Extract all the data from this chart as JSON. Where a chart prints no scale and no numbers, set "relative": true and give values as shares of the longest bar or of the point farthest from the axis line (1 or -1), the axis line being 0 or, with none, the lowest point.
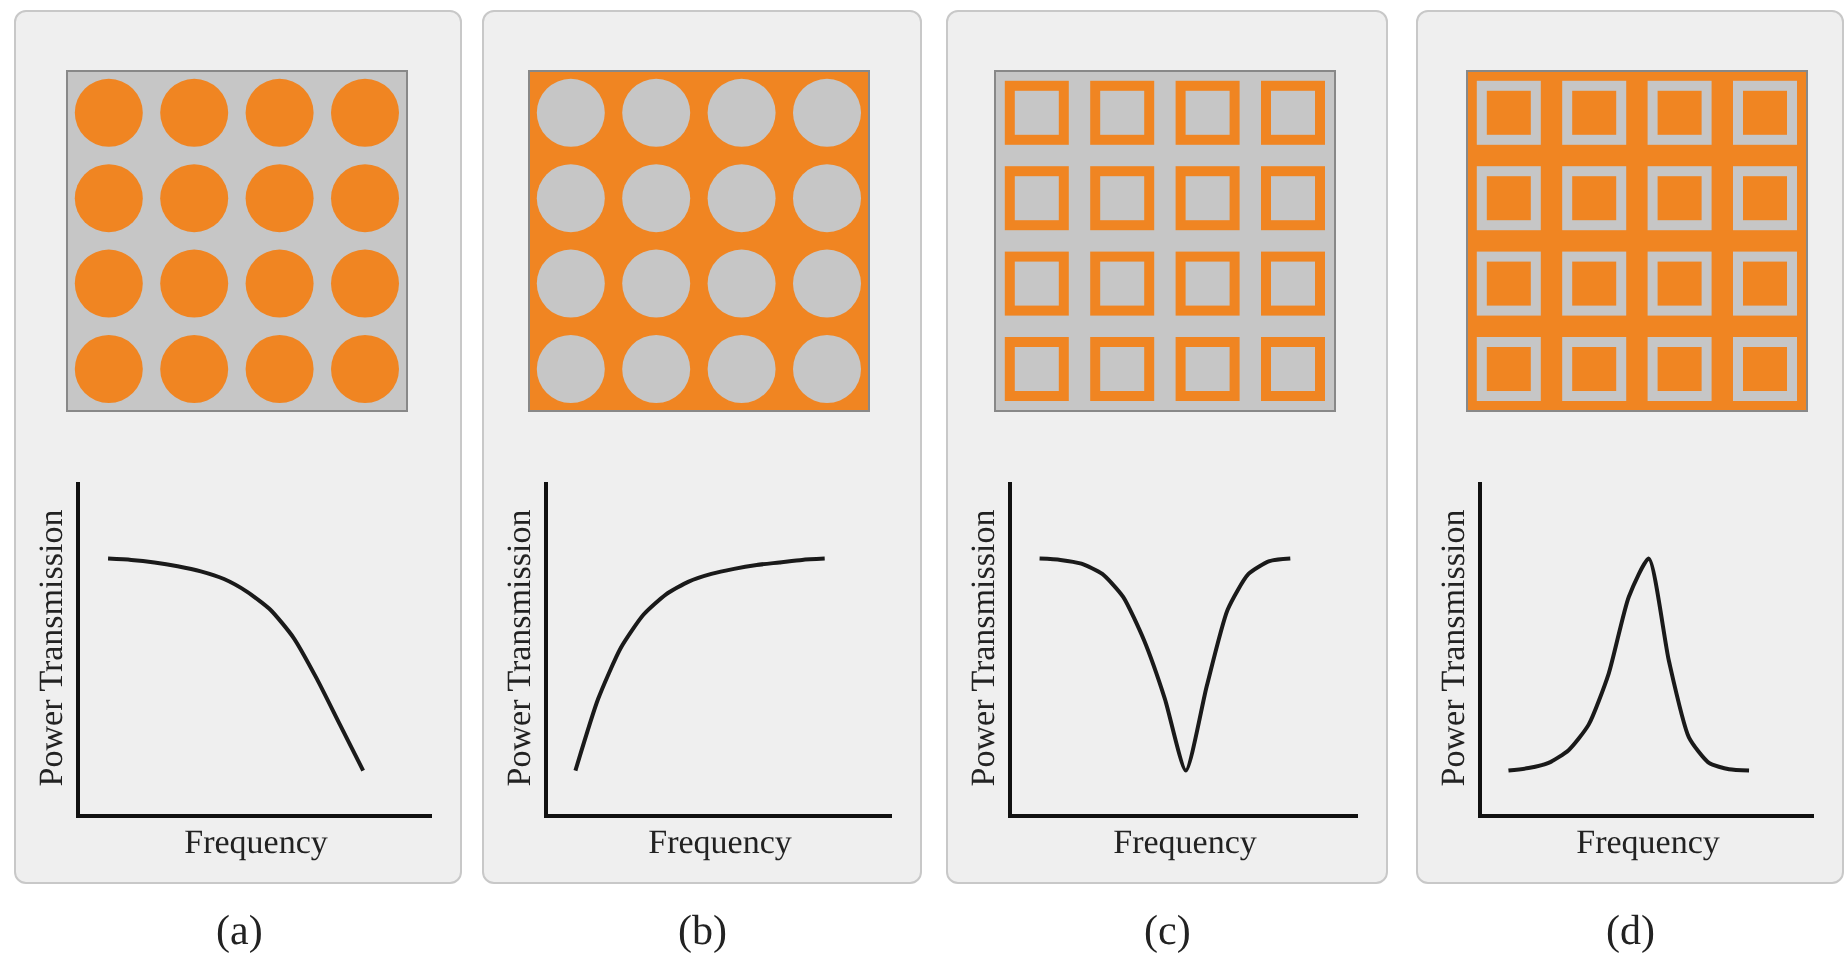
{
  "chart_data": [
    {
      "type": "line",
      "relative": true,
      "xlabel": "Frequency",
      "ylabel": "Power Transmission",
      "annotations": [
        "(a)"
      ],
      "categories": [
        null,
        null,
        null,
        null,
        null,
        null,
        null,
        null,
        null,
        null,
        null,
        null
      ],
      "series": [
        {
          "color": "#1a1a1a",
          "values": [
            1,
            0.995,
            0.985,
            0.97,
            0.95,
            0.92,
            0.87,
            0.8,
            0.69,
            0.53,
            0.35,
            0.17
          ]
        }
      ]
    },
    {
      "type": "line",
      "relative": true,
      "xlabel": "Frequency",
      "ylabel": "Power Transmission",
      "annotations": [
        "(b)"
      ],
      "categories": [
        null,
        null,
        null,
        null,
        null,
        null,
        null,
        null,
        null,
        null,
        null,
        null
      ],
      "series": [
        {
          "color": "#1a1a1a",
          "values": [
            0.17,
            0.45,
            0.65,
            0.78,
            0.86,
            0.91,
            0.94,
            0.96,
            0.975,
            0.985,
            0.995,
            1
          ]
        }
      ]
    },
    {
      "type": "line",
      "relative": true,
      "xlabel": "Frequency",
      "ylabel": "Power Transmission",
      "annotations": [
        "(c)"
      ],
      "categories": [
        null,
        null,
        null,
        null,
        null,
        null,
        null,
        null,
        null,
        null,
        null,
        null,
        null
      ],
      "series": [
        {
          "color": "#1a1a1a",
          "values": [
            1,
            0.995,
            0.98,
            0.94,
            0.85,
            0.68,
            0.45,
            0.17,
            0.5,
            0.8,
            0.94,
            0.99,
            1
          ]
        }
      ]
    },
    {
      "type": "line",
      "relative": true,
      "xlabel": "Frequency",
      "ylabel": "Power Transmission",
      "annotations": [
        "(d)"
      ],
      "categories": [
        null,
        null,
        null,
        null,
        null,
        null,
        null,
        null,
        null,
        null,
        null,
        null,
        null
      ],
      "series": [
        {
          "color": "#1a1a1a",
          "values": [
            0.17,
            0.18,
            0.2,
            0.25,
            0.35,
            0.55,
            0.85,
            1,
            0.6,
            0.3,
            0.2,
            0.175,
            0.17
          ]
        }
      ]
    }
  ]
}
